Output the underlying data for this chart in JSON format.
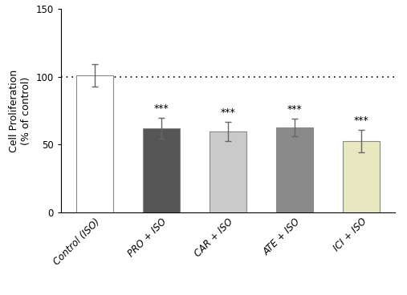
{
  "categories": [
    "Control (ISO)",
    "PRO + ISO",
    "CAR + ISO",
    "ATE + ISO",
    "ICI + ISO"
  ],
  "values": [
    101.0,
    62.0,
    59.5,
    62.5,
    52.5
  ],
  "errors": [
    8.0,
    7.5,
    7.0,
    6.5,
    8.5
  ],
  "bar_colors": [
    "#ffffff",
    "#555555",
    "#cacaca",
    "#8a8a8a",
    "#e8e8c0"
  ],
  "bar_edge_colors": [
    "#888888",
    "#888888",
    "#888888",
    "#888888",
    "#888888"
  ],
  "significance": [
    null,
    "***",
    "***",
    "***",
    "***"
  ],
  "ylabel_line1": "Cell Proliferation",
  "ylabel_line2": "(% of control)",
  "ylim": [
    0,
    150
  ],
  "yticks": [
    0,
    50,
    100,
    150
  ],
  "dotted_line_y": 100,
  "bar_width": 0.55,
  "sig_fontsize": 9,
  "ylabel_fontsize": 9,
  "tick_fontsize": 8.5,
  "background_color": "#ffffff",
  "error_cap_size": 3,
  "edge_linewidth": 0.8,
  "error_linewidth": 1.0,
  "error_color": "#666666"
}
